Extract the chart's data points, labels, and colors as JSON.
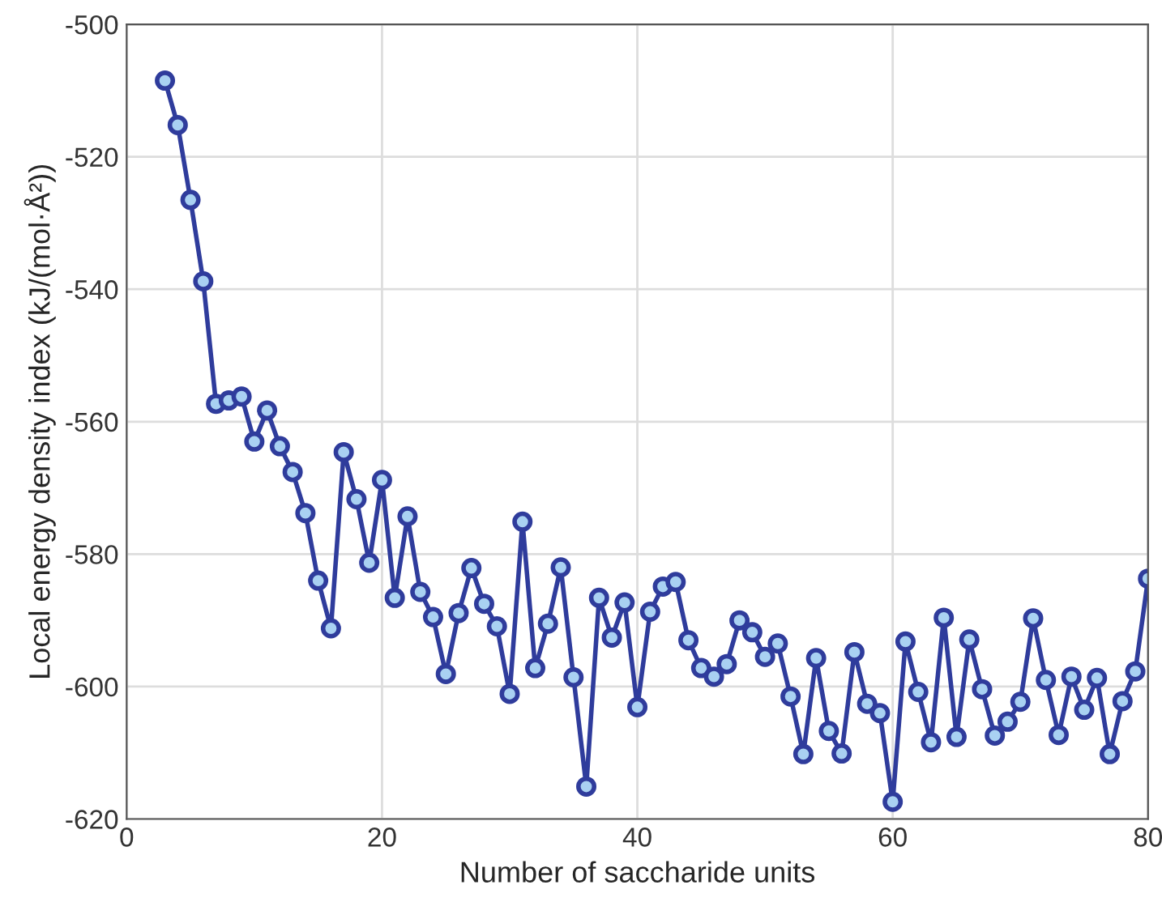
{
  "chart_data": {
    "type": "line",
    "xlabel": "Number of saccharide units",
    "ylabel": "Local energy density index (kJ/(mol·Å²))",
    "x": [
      3,
      4,
      5,
      6,
      7,
      8,
      9,
      10,
      11,
      12,
      13,
      14,
      15,
      16,
      17,
      18,
      19,
      20,
      21,
      22,
      23,
      24,
      25,
      26,
      27,
      28,
      29,
      30,
      31,
      32,
      33,
      34,
      35,
      36,
      37,
      38,
      39,
      40,
      41,
      42,
      43,
      44,
      45,
      46,
      47,
      48,
      49,
      50,
      51,
      52,
      53,
      54,
      55,
      56,
      57,
      58,
      59,
      60,
      61,
      62,
      63,
      64,
      65,
      66,
      67,
      68,
      69,
      70,
      71,
      72,
      73,
      74,
      75,
      76,
      77,
      78,
      79,
      80
    ],
    "series": [
      {
        "color": "#2f3c9c",
        "values": [
          -508.5,
          -515.2,
          -526.5,
          -538.8,
          -557.3,
          -556.8,
          -556.2,
          -563,
          -558.3,
          -563.7,
          -567.6,
          -573.8,
          -584,
          -591.2,
          -564.6,
          -571.7,
          -581.3,
          -568.8,
          -586.6,
          -574.3,
          -585.7,
          -589.5,
          -598.1,
          -588.9,
          -582.1,
          -587.5,
          -590.9,
          -601.1,
          -575.1,
          -597.2,
          -590.5,
          -582,
          -598.6,
          -615.1,
          -586.6,
          -592.6,
          -587.3,
          -603.1,
          -588.7,
          -584.9,
          -584.2,
          -593,
          -597.2,
          -598.5,
          -596.6,
          -590,
          -591.8,
          -595.5,
          -593.5,
          -601.5,
          -610.2,
          -595.7,
          -606.7,
          -610.1,
          -594.8,
          -602.6,
          -604,
          -617.4,
          -593.2,
          -600.8,
          -608.4,
          -589.6,
          -607.6,
          -592.9,
          -600.4,
          -607.4,
          -605.3,
          -602.3,
          -589.7,
          -599,
          -607.3,
          -598.5,
          -603.5,
          -598.7,
          -610.2,
          -602.2,
          -597.7,
          -583.7
        ]
      }
    ],
    "xlim": [
      0,
      80
    ],
    "xticks": [
      0,
      20,
      40,
      60,
      80
    ],
    "ylim": [
      -620,
      -500
    ],
    "yticks": [
      -620,
      -600,
      -580,
      -560,
      -540,
      -520,
      -500
    ],
    "grid": true,
    "marker": "circle",
    "line_style": "solid"
  }
}
